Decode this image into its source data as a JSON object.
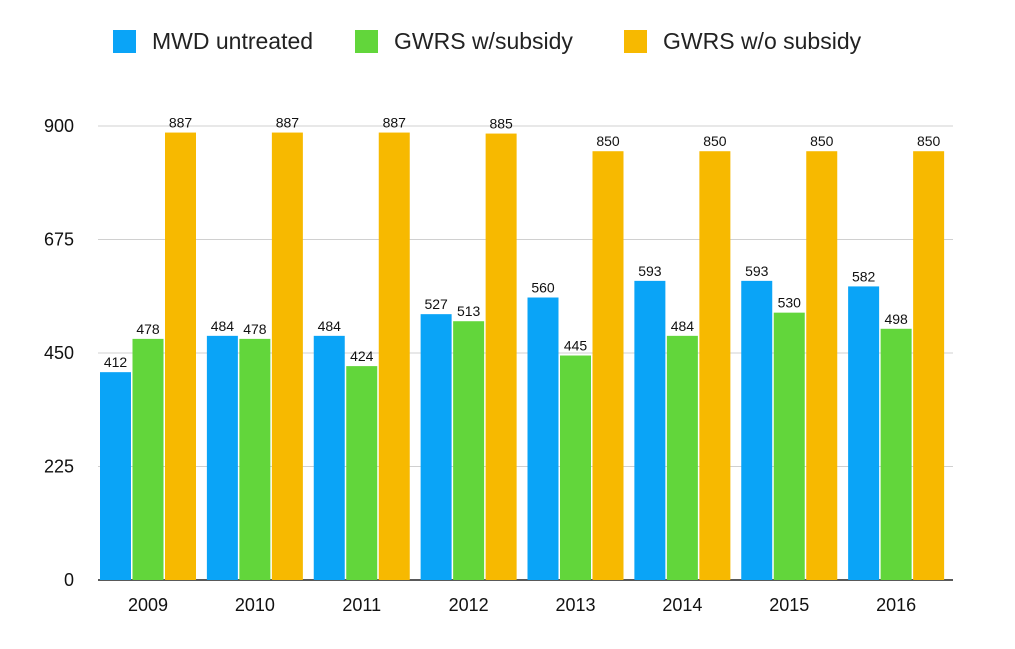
{
  "chart_data": {
    "type": "bar",
    "categories": [
      "2009",
      "2010",
      "2011",
      "2012",
      "2013",
      "2014",
      "2015",
      "2016"
    ],
    "series": [
      {
        "name": "MWD untreated",
        "color": "#0aa4f7",
        "values": [
          412,
          484,
          484,
          527,
          560,
          593,
          593,
          582
        ]
      },
      {
        "name": "GWRS w/subsidy",
        "color": "#62d63b",
        "values": [
          478,
          478,
          424,
          513,
          445,
          484,
          530,
          498
        ]
      },
      {
        "name": "GWRS w/o subsidy",
        "color": "#f7b900",
        "values": [
          887,
          887,
          887,
          885,
          850,
          850,
          850,
          850
        ]
      }
    ],
    "ylim": [
      0,
      900
    ],
    "yticks": [
      "0",
      "225",
      "450",
      "675",
      "900"
    ],
    "grid": true,
    "legend_position": "top",
    "title": "",
    "xlabel": "",
    "ylabel": ""
  }
}
